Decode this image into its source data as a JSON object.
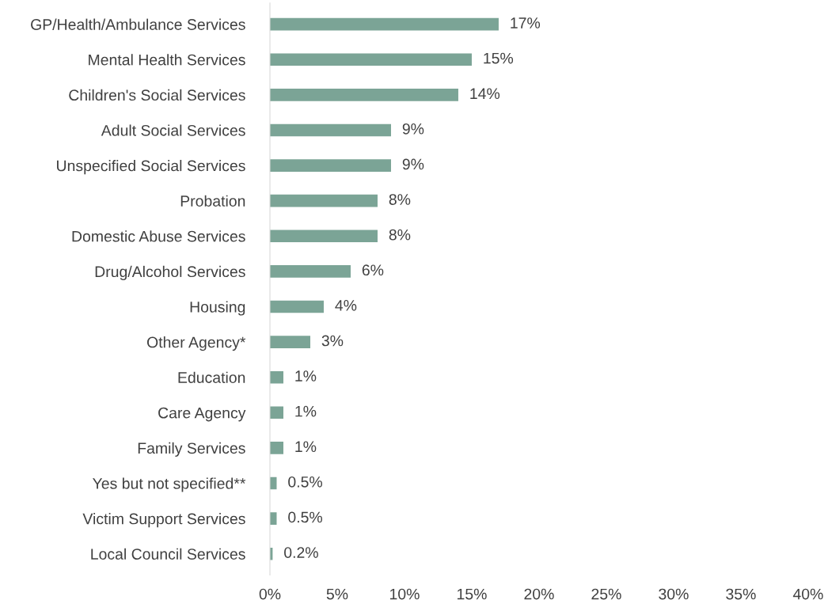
{
  "chart_data": {
    "type": "bar",
    "orientation": "horizontal",
    "categories": [
      "GP/Health/Ambulance Services",
      "Mental Health Services",
      "Children's Social Services",
      "Adult Social Services",
      "Unspecified Social Services",
      "Probation",
      "Domestic Abuse Services",
      "Drug/Alcohol Services",
      "Housing",
      "Other Agency*",
      "Education",
      "Care Agency",
      "Family Services",
      "Yes but not specified**",
      "Victim Support Services",
      "Local Council Services"
    ],
    "values": [
      17,
      15,
      14,
      9,
      9,
      8,
      8,
      6,
      4,
      3,
      1,
      1,
      1,
      0.5,
      0.5,
      0.2
    ],
    "value_labels": [
      "17%",
      "15%",
      "14%",
      "9%",
      "9%",
      "8%",
      "8%",
      "6%",
      "4%",
      "3%",
      "1%",
      "1%",
      "1%",
      "0.5%",
      "0.5%",
      "0.2%"
    ],
    "color": "#7ba496",
    "xlim": [
      0,
      40
    ],
    "xticks": [
      {
        "value": 0,
        "label": "0%"
      },
      {
        "value": 5,
        "label": "5%"
      },
      {
        "value": 10,
        "label": "10%"
      },
      {
        "value": 15,
        "label": "15%"
      },
      {
        "value": 20,
        "label": "20%"
      },
      {
        "value": 25,
        "label": "25%"
      },
      {
        "value": 30,
        "label": "30%"
      },
      {
        "value": 35,
        "label": "35%"
      },
      {
        "value": 40,
        "label": "40%"
      }
    ],
    "grid": false,
    "legend": false
  }
}
